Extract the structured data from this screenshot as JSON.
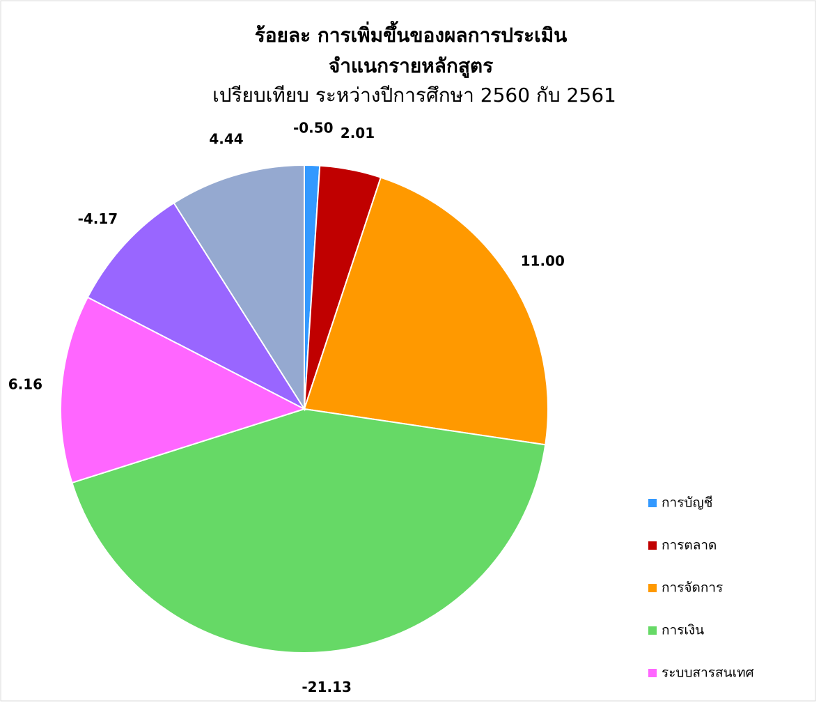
{
  "chart_data": {
    "type": "pie",
    "title": [
      "ร้อยละ  การเพิ่มขึ้นของผลการประเมิน",
      "จำแนกรายหลักสูตร"
    ],
    "subtitle": "เปรียบเทียบ ระหว่างปีการศึกษา 2560 กับ 2561",
    "categories": [
      "การบัญชี",
      "การตลาด",
      "การจัดการ",
      "การเงิน",
      "ระบบสารสนเทศ",
      null,
      null
    ],
    "values": [
      -0.5,
      2.01,
      11.0,
      -21.13,
      6.16,
      -4.17,
      4.44
    ],
    "value_labels": [
      "-0.50",
      "2.01",
      "11.00",
      "-21.13",
      "6.16",
      "-4.17",
      "4.44"
    ],
    "colors": [
      "#3399ff",
      "#c00000",
      "#ff9900",
      "#66d966",
      "#ff66ff",
      "#9966ff",
      "#95a9d0"
    ],
    "legend": "right"
  }
}
